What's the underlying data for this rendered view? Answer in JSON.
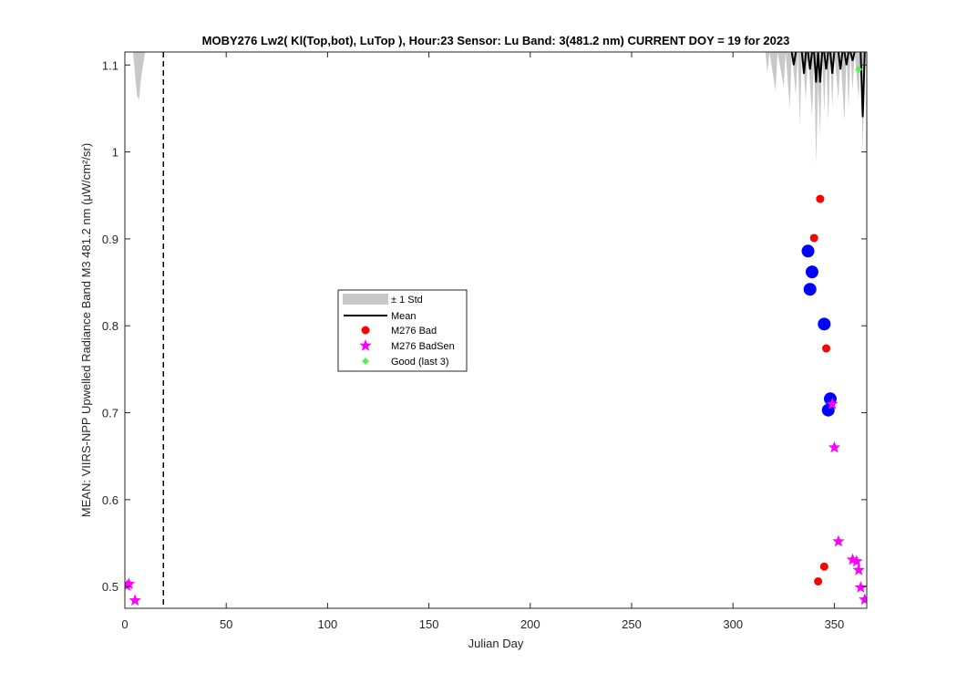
{
  "chart_data": {
    "type": "scatter",
    "title": "MOBY276   Lw2( Kl(Top,bot), LuTop ),   Hour:23 Sensor: Lu Band: 3(481.2 nm)   CURRENT DOY = 19 for 2023",
    "xlabel": "Julian Day",
    "ylabel": "MEAN: VIIRS-NPP Upwelled Radiance Band M3 481.2 nm (μW/cm²/sr)",
    "xlim": [
      0,
      366
    ],
    "ylim": [
      0.475,
      1.115
    ],
    "x_ticks": [
      0,
      50,
      100,
      150,
      200,
      250,
      300,
      350
    ],
    "x_tick_labels": [
      "0",
      "50",
      "100",
      "150",
      "200",
      "250",
      "300",
      "350"
    ],
    "y_ticks": [
      0.5,
      0.6,
      0.7,
      0.8,
      0.9,
      1.0,
      1.1
    ],
    "y_tick_labels": [
      "0.5",
      "0.6",
      "0.7",
      "0.8",
      "0.9",
      "1",
      "1.1"
    ],
    "current_doy": 19,
    "grid": false,
    "legend_position": "center-left",
    "legend": [
      {
        "label": "± 1 Std",
        "color": "#c8c8c8"
      },
      {
        "label": "Mean",
        "color": "#000000"
      },
      {
        "label": "M276 Bad",
        "color": "#ff0000"
      },
      {
        "label": "M276 BadSen",
        "color": "#ff00ff"
      },
      {
        "label": "Good (last 3)",
        "color": "#55ee55"
      }
    ],
    "std_band_left": [
      [
        1,
        1.115
      ],
      [
        4,
        1.115
      ],
      [
        6,
        1.065
      ],
      [
        7,
        1.06
      ],
      [
        8,
        1.085
      ],
      [
        10,
        1.115
      ]
    ],
    "std_band_right": [
      [
        316,
        1.115
      ],
      [
        317,
        1.09
      ],
      [
        318,
        1.115
      ],
      [
        321,
        1.07
      ],
      [
        322,
        1.115
      ],
      [
        325,
        1.075
      ],
      [
        326,
        1.115
      ],
      [
        328,
        1.05
      ],
      [
        329,
        1.115
      ],
      [
        331,
        1.065
      ],
      [
        332,
        1.115
      ],
      [
        333,
        1.03
      ],
      [
        334,
        1.115
      ],
      [
        336,
        1.06
      ],
      [
        337,
        1.115
      ],
      [
        339,
        1.04
      ],
      [
        340,
        1.115
      ],
      [
        341,
        0.985
      ],
      [
        342,
        1.08
      ],
      [
        343,
        1.02
      ],
      [
        344,
        1.115
      ],
      [
        345,
        1.045
      ],
      [
        346,
        1.115
      ],
      [
        347,
        1.035
      ],
      [
        348,
        1.115
      ],
      [
        349,
        1.05
      ],
      [
        350,
        1.115
      ],
      [
        352,
        1.06
      ],
      [
        353,
        1.115
      ],
      [
        355,
        1.035
      ],
      [
        356,
        1.115
      ],
      [
        357,
        1.05
      ],
      [
        358,
        1.115
      ],
      [
        359,
        1.07
      ],
      [
        360,
        1.115
      ],
      [
        362,
        1.06
      ],
      [
        363,
        1.115
      ],
      [
        364,
        1.0
      ],
      [
        365,
        1.115
      ]
    ],
    "mean_segments": [
      [
        [
          329,
          1.115
        ],
        [
          330,
          1.1
        ],
        [
          331,
          1.115
        ]
      ],
      [
        [
          334,
          1.115
        ],
        [
          335,
          1.09
        ],
        [
          336,
          1.115
        ]
      ],
      [
        [
          337,
          1.115
        ],
        [
          338,
          1.095
        ],
        [
          339,
          1.115
        ]
      ],
      [
        [
          340,
          1.115
        ],
        [
          341,
          1.08
        ],
        [
          342,
          1.115
        ],
        [
          343,
          1.08
        ],
        [
          344,
          1.115
        ]
      ],
      [
        [
          345,
          1.115
        ],
        [
          346,
          1.095
        ],
        [
          347,
          1.115
        ]
      ],
      [
        [
          348,
          1.115
        ],
        [
          349,
          1.09
        ],
        [
          350,
          1.115
        ]
      ],
      [
        [
          352,
          1.115
        ],
        [
          353,
          1.095
        ],
        [
          354,
          1.115
        ]
      ],
      [
        [
          355,
          1.115
        ],
        [
          356,
          1.1
        ],
        [
          357,
          1.115
        ]
      ],
      [
        [
          358,
          1.115
        ],
        [
          359,
          1.105
        ],
        [
          360,
          1.115
        ]
      ],
      [
        [
          363,
          1.115
        ],
        [
          364,
          1.04
        ],
        [
          365,
          1.115
        ]
      ]
    ],
    "blue_points": [
      [
        337,
        0.886
      ],
      [
        339,
        0.862
      ],
      [
        338,
        0.842
      ],
      [
        345,
        0.802
      ],
      [
        348,
        0.716
      ],
      [
        347,
        0.703
      ]
    ],
    "bad_points": [
      [
        343,
        0.946
      ],
      [
        340,
        0.901
      ],
      [
        346,
        0.774
      ],
      [
        345,
        0.523
      ],
      [
        342,
        0.506
      ]
    ],
    "badsen_points": [
      [
        1,
        0.501
      ],
      [
        2,
        0.503
      ],
      [
        5,
        0.484
      ],
      [
        349,
        0.71
      ],
      [
        350,
        0.66
      ],
      [
        352,
        0.552
      ],
      [
        359,
        0.531
      ],
      [
        361,
        0.529
      ],
      [
        362,
        0.519
      ],
      [
        363,
        0.499
      ],
      [
        365,
        0.485
      ]
    ],
    "good_points": [
      [
        362,
        1.095
      ]
    ]
  }
}
